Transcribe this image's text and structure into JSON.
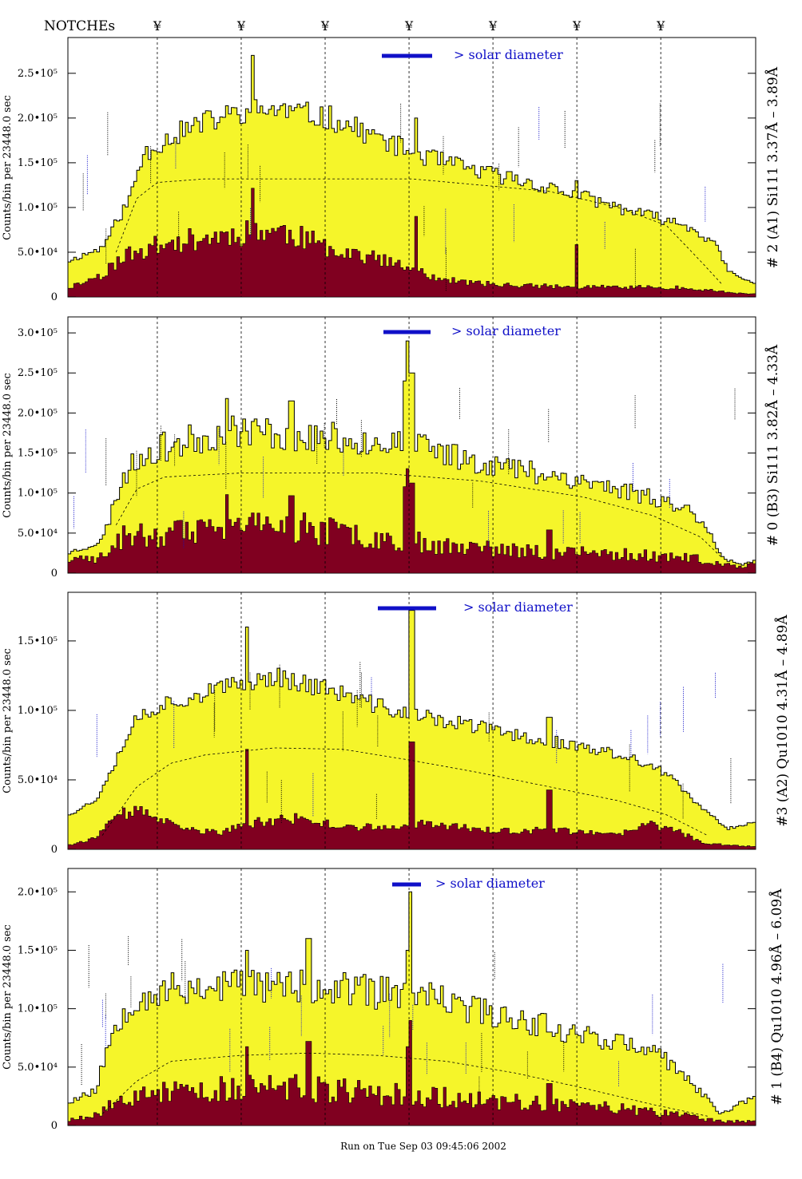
{
  "header": {
    "notches_label": "NOTCHEs",
    "notch_symbol": "¥"
  },
  "footer": {
    "run_text": "Run on Tue Sep 03 09:45:06 2002"
  },
  "colors": {
    "fill_total": "#f5f52a",
    "fill_dark": "#800020",
    "accent_blue": "#1010c8"
  },
  "chart_data": [
    {
      "type": "area",
      "title": "# 2 (A1) Si111  3.37Å – 3.89Å",
      "ylabel": "Counts/bin per  23448.0 sec",
      "solar_label": "> solar diameter",
      "ylim": [
        0,
        290000
      ],
      "yticks": [
        {
          "v": 0,
          "label": "0"
        },
        {
          "v": 50000,
          "label": "5.0•10⁴"
        },
        {
          "v": 100000,
          "label": "1.0•10⁵"
        },
        {
          "v": 150000,
          "label": "1.5•10⁵"
        },
        {
          "v": 200000,
          "label": "2.0•10⁵"
        },
        {
          "v": 250000,
          "label": "2.5•10⁵"
        }
      ],
      "total_profile": [
        [
          0,
          40000
        ],
        [
          0.05,
          55000
        ],
        [
          0.09,
          110000
        ],
        [
          0.11,
          160000
        ],
        [
          0.14,
          175000
        ],
        [
          0.18,
          190000
        ],
        [
          0.22,
          200000
        ],
        [
          0.26,
          208000
        ],
        [
          0.3,
          210000
        ],
        [
          0.34,
          205000
        ],
        [
          0.38,
          200000
        ],
        [
          0.42,
          188000
        ],
        [
          0.46,
          175000
        ],
        [
          0.5,
          162000
        ],
        [
          0.55,
          150000
        ],
        [
          0.6,
          140000
        ],
        [
          0.65,
          132000
        ],
        [
          0.7,
          122000
        ],
        [
          0.75,
          112000
        ],
        [
          0.8,
          100000
        ],
        [
          0.85,
          90000
        ],
        [
          0.9,
          80000
        ],
        [
          0.94,
          60000
        ],
        [
          0.96,
          30000
        ],
        [
          0.975,
          22000
        ],
        [
          1.0,
          15000
        ]
      ],
      "dark_profile": [
        [
          0,
          10000
        ],
        [
          0.05,
          25000
        ],
        [
          0.08,
          45000
        ],
        [
          0.12,
          55000
        ],
        [
          0.16,
          62000
        ],
        [
          0.2,
          66000
        ],
        [
          0.24,
          70000
        ],
        [
          0.28,
          75000
        ],
        [
          0.32,
          72000
        ],
        [
          0.36,
          60000
        ],
        [
          0.4,
          52000
        ],
        [
          0.44,
          45000
        ],
        [
          0.48,
          35000
        ],
        [
          0.52,
          25000
        ],
        [
          0.56,
          18000
        ],
        [
          0.6,
          15000
        ],
        [
          0.65,
          13000
        ],
        [
          0.7,
          12000
        ],
        [
          0.75,
          11000
        ],
        [
          0.8,
          11000
        ],
        [
          0.85,
          11000
        ],
        [
          0.9,
          10000
        ],
        [
          0.93,
          8000
        ],
        [
          0.96,
          5000
        ],
        [
          1.0,
          3000
        ]
      ],
      "dashed_profile": [
        [
          0.07,
          50000
        ],
        [
          0.1,
          110000
        ],
        [
          0.13,
          128000
        ],
        [
          0.2,
          132000
        ],
        [
          0.5,
          132000
        ],
        [
          0.7,
          118000
        ],
        [
          0.8,
          100000
        ],
        [
          0.87,
          80000
        ],
        [
          0.92,
          40000
        ],
        [
          0.95,
          15000
        ]
      ],
      "spikes": [
        {
          "x": 0.268,
          "v": 270000
        },
        {
          "x": 0.505,
          "v": 200000
        },
        {
          "x": 0.74,
          "v": 130000
        }
      ],
      "noise_seed": 11,
      "noise_amp": 0.07
    },
    {
      "type": "area",
      "title": "# 0 (B3) Si111  3.82Å – 4.33Å",
      "ylabel": "Counts/bin per  23448.0 sec",
      "solar_label": "> solar diameter",
      "ylim": [
        0,
        320000
      ],
      "yticks": [
        {
          "v": 0,
          "label": "0"
        },
        {
          "v": 50000,
          "label": "5.0•10⁴"
        },
        {
          "v": 100000,
          "label": "1.0•10⁵"
        },
        {
          "v": 150000,
          "label": "1.5•10⁵"
        },
        {
          "v": 200000,
          "label": "2.0•10⁵"
        },
        {
          "v": 250000,
          "label": "2.5•10⁵"
        },
        {
          "v": 300000,
          "label": "3.0•10⁵"
        }
      ],
      "total_profile": [
        [
          0,
          25000
        ],
        [
          0.05,
          40000
        ],
        [
          0.08,
          120000
        ],
        [
          0.11,
          150000
        ],
        [
          0.15,
          160000
        ],
        [
          0.2,
          170000
        ],
        [
          0.25,
          180000
        ],
        [
          0.3,
          175000
        ],
        [
          0.35,
          170000
        ],
        [
          0.4,
          168000
        ],
        [
          0.45,
          165000
        ],
        [
          0.5,
          160000
        ],
        [
          0.55,
          150000
        ],
        [
          0.6,
          140000
        ],
        [
          0.65,
          130000
        ],
        [
          0.7,
          125000
        ],
        [
          0.75,
          115000
        ],
        [
          0.8,
          105000
        ],
        [
          0.85,
          95000
        ],
        [
          0.9,
          80000
        ],
        [
          0.93,
          60000
        ],
        [
          0.95,
          20000
        ],
        [
          0.98,
          10000
        ],
        [
          1.0,
          15000
        ]
      ],
      "dark_profile": [
        [
          0,
          15000
        ],
        [
          0.05,
          20000
        ],
        [
          0.08,
          45000
        ],
        [
          0.12,
          48000
        ],
        [
          0.18,
          50000
        ],
        [
          0.25,
          55000
        ],
        [
          0.3,
          60000
        ],
        [
          0.35,
          55000
        ],
        [
          0.4,
          50000
        ],
        [
          0.45,
          45000
        ],
        [
          0.5,
          40000
        ],
        [
          0.55,
          35000
        ],
        [
          0.6,
          30000
        ],
        [
          0.65,
          28000
        ],
        [
          0.7,
          26000
        ],
        [
          0.75,
          25000
        ],
        [
          0.8,
          24000
        ],
        [
          0.85,
          22000
        ],
        [
          0.9,
          20000
        ],
        [
          0.94,
          12000
        ],
        [
          0.97,
          8000
        ],
        [
          1.0,
          12000
        ]
      ],
      "dashed_profile": [
        [
          0.07,
          60000
        ],
        [
          0.1,
          105000
        ],
        [
          0.14,
          120000
        ],
        [
          0.25,
          125000
        ],
        [
          0.45,
          125000
        ],
        [
          0.6,
          115000
        ],
        [
          0.75,
          95000
        ],
        [
          0.85,
          72000
        ],
        [
          0.92,
          45000
        ],
        [
          0.95,
          20000
        ]
      ],
      "spikes": [
        {
          "x": 0.232,
          "v": 218000
        },
        {
          "x": 0.325,
          "v": 215000
        },
        {
          "x": 0.488,
          "v": 240000
        },
        {
          "x": 0.494,
          "v": 290000
        },
        {
          "x": 0.5,
          "v": 250000
        },
        {
          "x": 0.7,
          "v": 120000
        }
      ],
      "noise_seed": 23,
      "noise_amp": 0.12
    },
    {
      "type": "area",
      "title": "#3 (A2) Qu1010  4.31Å – 4.89Å",
      "ylabel": "Counts/bin per  23448.0 sec",
      "solar_label": "> solar diameter",
      "ylim": [
        0,
        185000
      ],
      "yticks": [
        {
          "v": 0,
          "label": "0"
        },
        {
          "v": 50000,
          "label": "5.0•10⁴"
        },
        {
          "v": 100000,
          "label": "1.0•10⁵"
        },
        {
          "v": 150000,
          "label": "1.5•10⁵"
        }
      ],
      "total_profile": [
        [
          0,
          25000
        ],
        [
          0.04,
          35000
        ],
        [
          0.07,
          65000
        ],
        [
          0.1,
          95000
        ],
        [
          0.14,
          105000
        ],
        [
          0.18,
          110000
        ],
        [
          0.22,
          115000
        ],
        [
          0.26,
          120000
        ],
        [
          0.3,
          125000
        ],
        [
          0.34,
          120000
        ],
        [
          0.38,
          115000
        ],
        [
          0.42,
          108000
        ],
        [
          0.46,
          102000
        ],
        [
          0.5,
          97000
        ],
        [
          0.55,
          92000
        ],
        [
          0.6,
          88000
        ],
        [
          0.65,
          82000
        ],
        [
          0.7,
          78000
        ],
        [
          0.75,
          73000
        ],
        [
          0.8,
          68000
        ],
        [
          0.85,
          60000
        ],
        [
          0.88,
          50000
        ],
        [
          0.92,
          30000
        ],
        [
          0.96,
          15000
        ],
        [
          1.0,
          20000
        ]
      ],
      "dark_profile": [
        [
          0,
          3000
        ],
        [
          0.04,
          8000
        ],
        [
          0.07,
          22000
        ],
        [
          0.09,
          28000
        ],
        [
          0.12,
          25000
        ],
        [
          0.16,
          15000
        ],
        [
          0.22,
          12000
        ],
        [
          0.28,
          20000
        ],
        [
          0.33,
          22000
        ],
        [
          0.38,
          18000
        ],
        [
          0.42,
          16000
        ],
        [
          0.48,
          15000
        ],
        [
          0.52,
          20000
        ],
        [
          0.58,
          15000
        ],
        [
          0.62,
          14000
        ],
        [
          0.66,
          12000
        ],
        [
          0.7,
          15000
        ],
        [
          0.75,
          12000
        ],
        [
          0.8,
          10000
        ],
        [
          0.84,
          18000
        ],
        [
          0.88,
          15000
        ],
        [
          0.92,
          5000
        ],
        [
          0.96,
          3000
        ],
        [
          1.0,
          2000
        ]
      ],
      "dashed_profile": [
        [
          0.05,
          10000
        ],
        [
          0.1,
          45000
        ],
        [
          0.15,
          62000
        ],
        [
          0.2,
          68000
        ],
        [
          0.3,
          73000
        ],
        [
          0.4,
          72000
        ],
        [
          0.5,
          64000
        ],
        [
          0.6,
          55000
        ],
        [
          0.7,
          45000
        ],
        [
          0.8,
          35000
        ],
        [
          0.87,
          25000
        ],
        [
          0.93,
          10000
        ]
      ],
      "spikes": [
        {
          "x": 0.262,
          "v": 160000
        },
        {
          "x": 0.5,
          "v": 172000
        },
        {
          "x": 0.7,
          "v": 95000
        }
      ],
      "noise_seed": 37,
      "noise_amp": 0.06
    },
    {
      "type": "area",
      "title": "# 1 (B4) Qu1010 4.96Å – 6.09Å",
      "ylabel": "Counts/bin per  23448.0 sec",
      "solar_label": "> solar diameter",
      "ylim": [
        0,
        220000
      ],
      "yticks": [
        {
          "v": 0,
          "label": "0"
        },
        {
          "v": 50000,
          "label": "5.0•10⁴"
        },
        {
          "v": 100000,
          "label": "1.0•10⁵"
        },
        {
          "v": 150000,
          "label": "1.5•10⁵"
        },
        {
          "v": 200000,
          "label": "2.0•10⁵"
        }
      ],
      "total_profile": [
        [
          0,
          20000
        ],
        [
          0.04,
          30000
        ],
        [
          0.07,
          90000
        ],
        [
          0.1,
          110000
        ],
        [
          0.14,
          115000
        ],
        [
          0.18,
          118000
        ],
        [
          0.22,
          120000
        ],
        [
          0.26,
          122000
        ],
        [
          0.3,
          120000
        ],
        [
          0.35,
          118000
        ],
        [
          0.4,
          116000
        ],
        [
          0.45,
          114000
        ],
        [
          0.5,
          112000
        ],
        [
          0.55,
          105000
        ],
        [
          0.6,
          98000
        ],
        [
          0.65,
          92000
        ],
        [
          0.7,
          85000
        ],
        [
          0.75,
          78000
        ],
        [
          0.8,
          72000
        ],
        [
          0.85,
          62000
        ],
        [
          0.88,
          52000
        ],
        [
          0.92,
          28000
        ],
        [
          0.95,
          10000
        ],
        [
          0.98,
          20000
        ],
        [
          1.0,
          25000
        ]
      ],
      "dark_profile": [
        [
          0,
          5000
        ],
        [
          0.04,
          10000
        ],
        [
          0.07,
          20000
        ],
        [
          0.1,
          25000
        ],
        [
          0.15,
          28000
        ],
        [
          0.2,
          30000
        ],
        [
          0.25,
          32000
        ],
        [
          0.3,
          33000
        ],
        [
          0.35,
          32000
        ],
        [
          0.4,
          30000
        ],
        [
          0.45,
          28000
        ],
        [
          0.5,
          26000
        ],
        [
          0.55,
          24000
        ],
        [
          0.6,
          22000
        ],
        [
          0.65,
          20000
        ],
        [
          0.7,
          18000
        ],
        [
          0.75,
          16000
        ],
        [
          0.8,
          14000
        ],
        [
          0.85,
          12000
        ],
        [
          0.9,
          8000
        ],
        [
          0.95,
          4000
        ],
        [
          1.0,
          3000
        ]
      ],
      "dashed_profile": [
        [
          0.05,
          10000
        ],
        [
          0.1,
          38000
        ],
        [
          0.15,
          55000
        ],
        [
          0.25,
          60000
        ],
        [
          0.35,
          62000
        ],
        [
          0.45,
          60000
        ],
        [
          0.55,
          55000
        ],
        [
          0.65,
          45000
        ],
        [
          0.75,
          32000
        ],
        [
          0.85,
          18000
        ],
        [
          0.93,
          8000
        ]
      ],
      "spikes": [
        {
          "x": 0.262,
          "v": 150000
        },
        {
          "x": 0.35,
          "v": 160000
        },
        {
          "x": 0.497,
          "v": 200000
        },
        {
          "x": 0.492,
          "v": 150000
        },
        {
          "x": 0.7,
          "v": 80000
        }
      ],
      "noise_seed": 53,
      "noise_amp": 0.13
    }
  ]
}
